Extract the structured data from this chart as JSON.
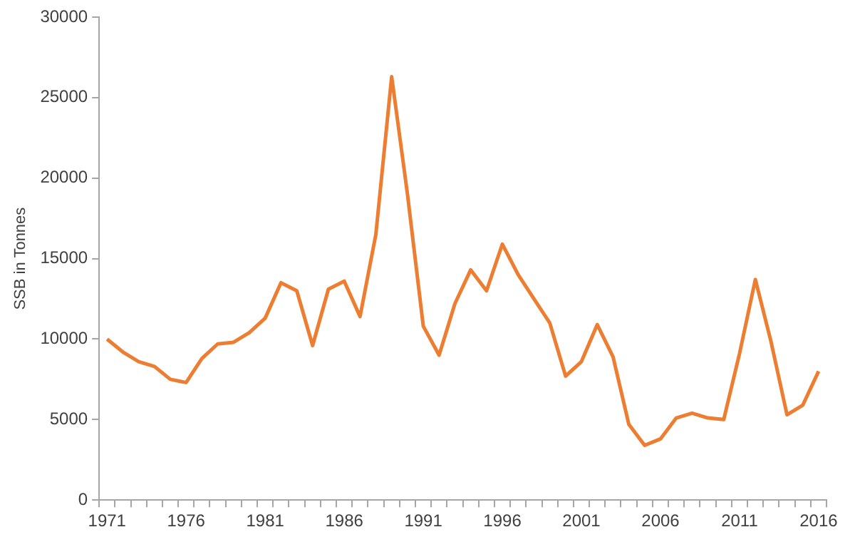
{
  "chart_data": {
    "type": "line",
    "ylabel": "SSB in Tonnes",
    "categories": [
      "1971",
      null,
      null,
      null,
      null,
      "1976",
      null,
      null,
      null,
      null,
      "1981",
      null,
      null,
      null,
      null,
      "1986",
      null,
      null,
      null,
      null,
      "1991",
      null,
      null,
      null,
      null,
      "1996",
      null,
      null,
      null,
      null,
      "2001",
      null,
      null,
      null,
      null,
      "2006",
      null,
      null,
      null,
      null,
      "2011",
      null,
      null,
      null,
      null,
      "2016"
    ],
    "series": [
      {
        "color": "#ed7d31",
        "values": [
          10000,
          9200,
          8600,
          8300,
          7500,
          7300,
          8800,
          9700,
          9800,
          10400,
          11300,
          13500,
          13000,
          9600,
          13100,
          13600,
          11400,
          16500,
          26300,
          19000,
          10800,
          9000,
          12200,
          14300,
          13000,
          15900,
          14000,
          12500,
          11000,
          7700,
          8600,
          10900,
          8900,
          4700,
          3400,
          3800,
          5100,
          5400,
          5100,
          5000,
          9100,
          13700,
          9800,
          5300,
          5900,
          8000
        ]
      }
    ],
    "ylim": [
      0,
      30000
    ],
    "yticks": [
      0,
      5000,
      10000,
      15000,
      20000,
      25000,
      30000
    ],
    "grid": false,
    "legend": false,
    "marker": "none",
    "line_style": "solid"
  }
}
